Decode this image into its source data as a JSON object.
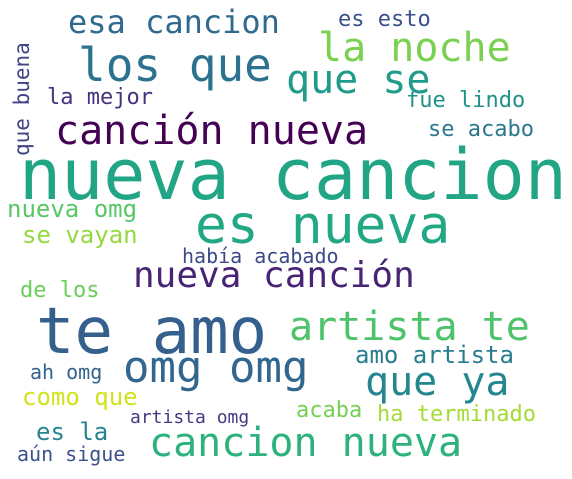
{
  "words": [
    {
      "text": "nueva cancion",
      "color": "#21a585"
    },
    {
      "text": "es nueva",
      "color": "#22a884"
    },
    {
      "text": "te amo",
      "color": "#355f8d"
    },
    {
      "text": "canción nueva",
      "color": "#440154"
    },
    {
      "text": "los que",
      "color": "#2c718e"
    },
    {
      "text": "la noche",
      "color": "#7ad151"
    },
    {
      "text": "que se",
      "color": "#1e9c89"
    },
    {
      "text": "esa cancion",
      "color": "#306a8e"
    },
    {
      "text": "nueva canción",
      "color": "#482475"
    },
    {
      "text": "artista te",
      "color": "#4ec36b"
    },
    {
      "text": "omg omg",
      "color": "#31678e"
    },
    {
      "text": "que ya",
      "color": "#24868e"
    },
    {
      "text": "cancion nueva",
      "color": "#2db27d"
    },
    {
      "text": "nueva omg",
      "color": "#58c765"
    },
    {
      "text": "se vayan",
      "color": "#95d840"
    },
    {
      "text": "amo artista",
      "color": "#287d8e"
    },
    {
      "text": "había acabado",
      "color": "#3e4989"
    },
    {
      "text": "fue lindo",
      "color": "#21918c"
    },
    {
      "text": "se acabo",
      "color": "#2a788e"
    },
    {
      "text": "la mejor",
      "color": "#46327e"
    },
    {
      "text": "es esto",
      "color": "#3b518b"
    },
    {
      "text": "como que",
      "color": "#d2e21b"
    },
    {
      "text": "ha terminado",
      "color": "#a5db36"
    },
    {
      "text": "de los",
      "color": "#6ccd5a"
    },
    {
      "text": "ah omg",
      "color": "#33638d"
    },
    {
      "text": "es la",
      "color": "#25848e"
    },
    {
      "text": "acaba",
      "color": "#75d054"
    },
    {
      "text": "artista omg",
      "color": "#443a83"
    },
    {
      "text": "aún sigue",
      "color": "#3b528b"
    },
    {
      "text": "que buena",
      "color": "#414487"
    }
  ]
}
